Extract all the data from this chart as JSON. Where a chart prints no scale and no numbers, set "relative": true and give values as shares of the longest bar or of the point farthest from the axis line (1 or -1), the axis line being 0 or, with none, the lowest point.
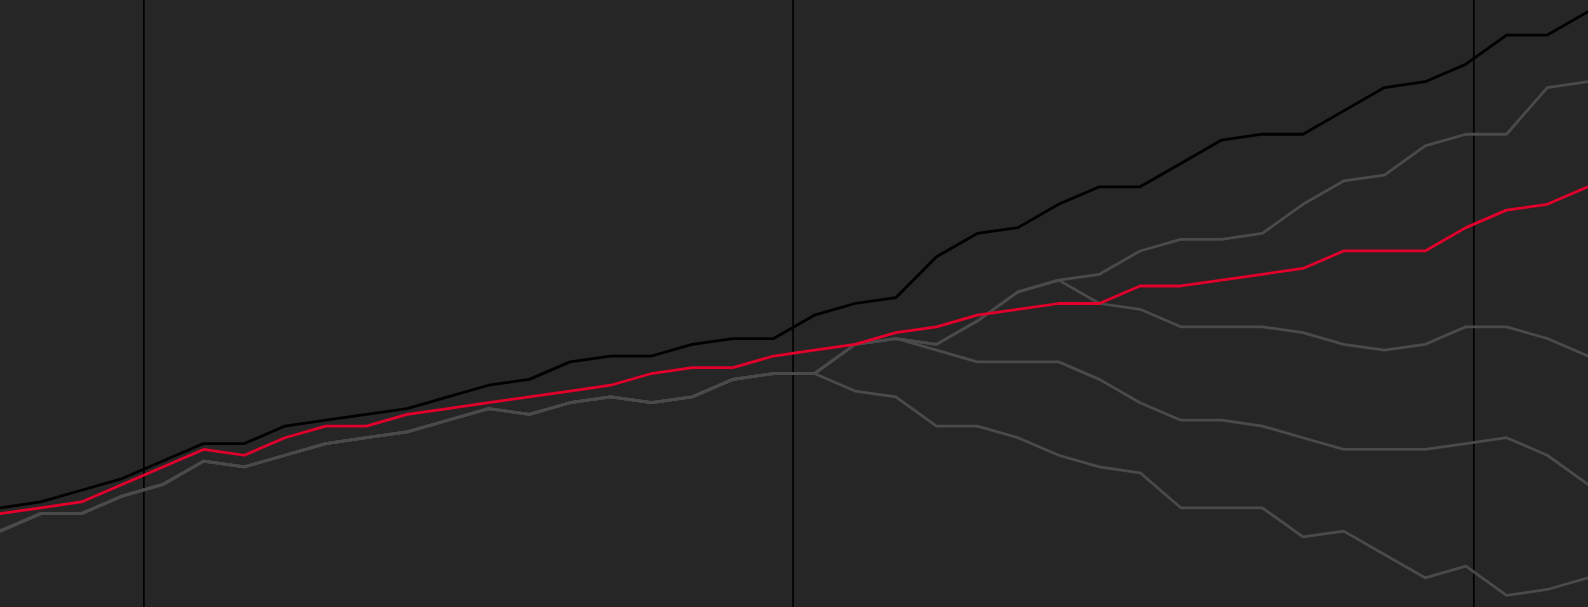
{
  "chart_data": {
    "type": "line",
    "relative": true,
    "categories": [
      null,
      null,
      null,
      null,
      null,
      null,
      null,
      null,
      null,
      null,
      null,
      null,
      null,
      null,
      null,
      null,
      null,
      null,
      null,
      null,
      null,
      null,
      null,
      null,
      null,
      null,
      null,
      null,
      null,
      null,
      null,
      null,
      null,
      null,
      null,
      null,
      null,
      null,
      null,
      null
    ],
    "series": [
      {
        "color": "#4a4a4a",
        "values": [
          0.11,
          0.14,
          0.14,
          0.17,
          0.19,
          0.23,
          0.22,
          0.24,
          0.26,
          0.27,
          0.28,
          0.3,
          0.32,
          0.31,
          0.33,
          0.34,
          0.33,
          0.34,
          0.37,
          0.38,
          0.38,
          0.35,
          0.34,
          0.29,
          0.29,
          0.27,
          0.24,
          0.22,
          0.21,
          0.15,
          0.15,
          0.15,
          0.1,
          0.11,
          0.07,
          0.03,
          0.05,
          0.0,
          0.01,
          0.03
        ]
      },
      {
        "color": "#4a4a4a",
        "values": [
          0.11,
          0.14,
          0.14,
          0.17,
          0.19,
          0.23,
          0.22,
          0.24,
          0.26,
          0.27,
          0.28,
          0.3,
          0.32,
          0.31,
          0.33,
          0.34,
          0.33,
          0.34,
          0.37,
          0.38,
          0.38,
          0.43,
          0.44,
          0.42,
          0.4,
          0.4,
          0.4,
          0.37,
          0.33,
          0.3,
          0.3,
          0.29,
          0.27,
          0.25,
          0.25,
          0.25,
          0.26,
          0.27,
          0.24,
          0.19
        ]
      },
      {
        "color": "#4a4a4a",
        "values": [
          0.11,
          0.14,
          0.14,
          0.17,
          0.19,
          0.23,
          0.22,
          0.24,
          0.26,
          0.27,
          0.28,
          0.3,
          0.32,
          0.31,
          0.33,
          0.34,
          0.33,
          0.34,
          0.37,
          0.38,
          0.38,
          0.43,
          0.44,
          0.43,
          0.47,
          0.52,
          0.54,
          0.5,
          0.49,
          0.46,
          0.46,
          0.46,
          0.45,
          0.43,
          0.42,
          0.43,
          0.46,
          0.46,
          0.44,
          0.41
        ]
      },
      {
        "color": "#4a4a4a",
        "values": [
          0.11,
          0.14,
          0.14,
          0.17,
          0.19,
          0.23,
          0.22,
          0.24,
          0.26,
          0.27,
          0.28,
          0.3,
          0.32,
          0.31,
          0.33,
          0.34,
          0.33,
          0.34,
          0.37,
          0.38,
          0.38,
          0.43,
          0.44,
          0.43,
          0.47,
          0.52,
          0.54,
          0.55,
          0.59,
          0.61,
          0.61,
          0.62,
          0.67,
          0.71,
          0.72,
          0.77,
          0.79,
          0.79,
          0.87,
          0.88
        ]
      },
      {
        "color": "#000000",
        "values": [
          0.15,
          0.16,
          0.18,
          0.2,
          0.23,
          0.26,
          0.26,
          0.29,
          0.3,
          0.31,
          0.32,
          0.34,
          0.36,
          0.37,
          0.4,
          0.41,
          0.41,
          0.43,
          0.44,
          0.44,
          0.48,
          0.5,
          0.51,
          0.58,
          0.62,
          0.63,
          0.67,
          0.7,
          0.7,
          0.74,
          0.78,
          0.79,
          0.79,
          0.83,
          0.87,
          0.88,
          0.91,
          0.96,
          0.96,
          1.0
        ]
      },
      {
        "color": "#e0002b",
        "values": [
          0.14,
          0.15,
          0.16,
          0.19,
          0.22,
          0.25,
          0.24,
          0.27,
          0.29,
          0.29,
          0.31,
          0.32,
          0.33,
          0.34,
          0.35,
          0.36,
          0.38,
          0.39,
          0.39,
          0.41,
          0.42,
          0.43,
          0.45,
          0.46,
          0.48,
          0.49,
          0.5,
          0.5,
          0.53,
          0.53,
          0.54,
          0.55,
          0.56,
          0.59,
          0.59,
          0.59,
          0.63,
          0.66,
          0.67,
          0.7
        ]
      }
    ],
    "legend": false
  }
}
